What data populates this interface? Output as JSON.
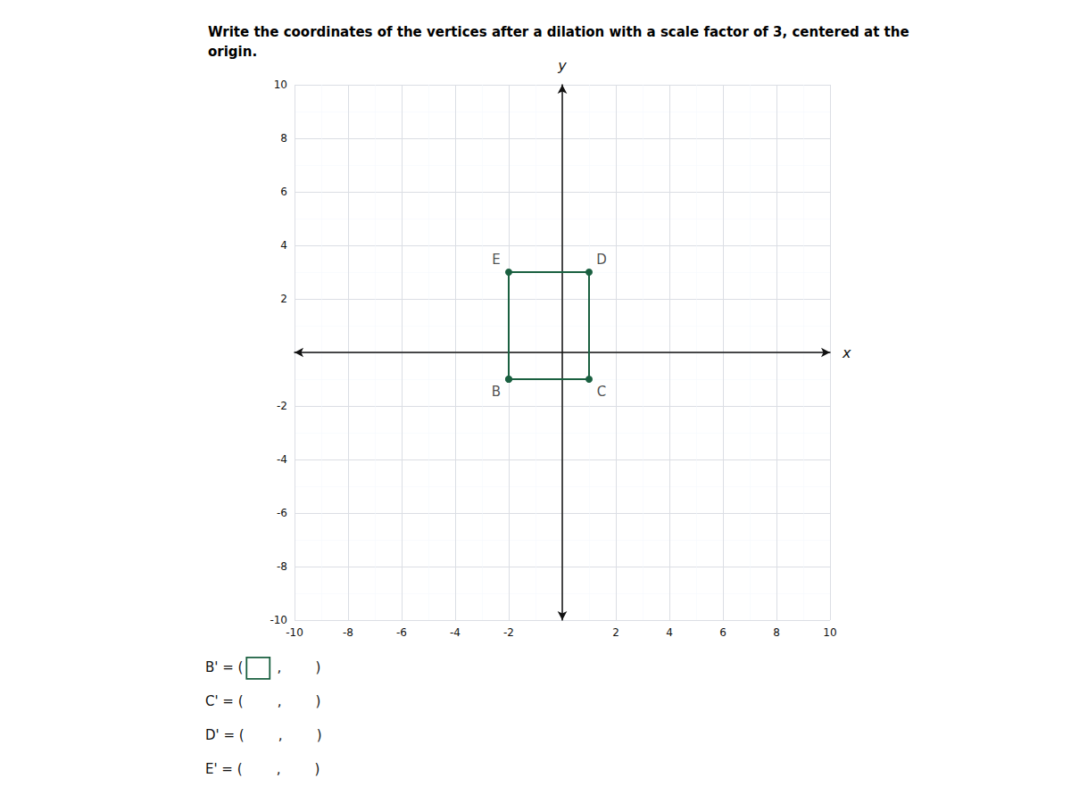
{
  "chart_data": {
    "type": "line",
    "title": "Write the coordinates of the vertices after a dilation with a scale factor of 3, centered at the\norigin.",
    "x": [
      -2,
      1,
      1,
      -2,
      -2
    ],
    "values": [
      -1,
      -1,
      3,
      3,
      -1
    ],
    "color": "#1a6040",
    "marker": "circle",
    "xlabel": "x",
    "ylabel": "y",
    "xlim": [
      -10,
      10
    ],
    "ylim": [
      -10,
      10
    ],
    "xticks": [
      -10,
      -8,
      -6,
      -4,
      -2,
      2,
      4,
      6,
      8,
      10
    ],
    "yticks": [
      -10,
      -8,
      -6,
      -4,
      -2,
      2,
      4,
      6,
      8,
      10
    ],
    "grid": true,
    "annotations": [
      {
        "text": "B",
        "x": -2,
        "y": -1
      },
      {
        "text": "C",
        "x": 1,
        "y": -1
      },
      {
        "text": "D",
        "x": 1,
        "y": 3
      },
      {
        "text": "E",
        "x": -2,
        "y": 3
      },
      {
        "text": "B' = (        ,        )"
      },
      {
        "text": "C' = (        ,        )"
      },
      {
        "text": "D' = (        ,        )"
      },
      {
        "text": "E' = (        ,        )"
      }
    ]
  }
}
